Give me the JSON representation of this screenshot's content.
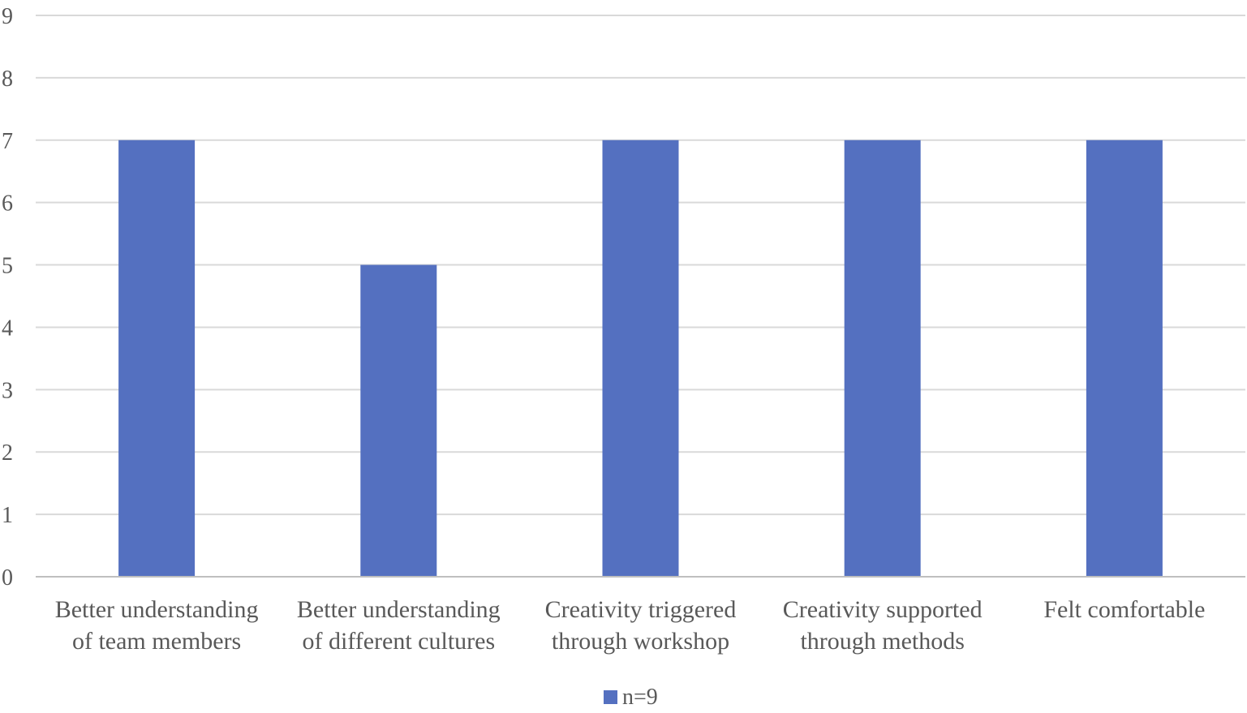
{
  "chart_data": {
    "type": "bar",
    "categories": [
      [
        "Better understanding",
        "of team members"
      ],
      [
        "Better understanding",
        "of different cultures"
      ],
      [
        "Creativity triggered",
        "through workshop"
      ],
      [
        "Creativity supported",
        "through methods"
      ],
      [
        "Felt comfortable"
      ]
    ],
    "series": [
      {
        "name": "n=9",
        "values": [
          7,
          5,
          7,
          7,
          7
        ],
        "color": "#5470c0"
      }
    ],
    "title": "",
    "xlabel": "",
    "ylabel": "",
    "ylim": [
      0,
      9
    ],
    "yticks": [
      "0",
      "1",
      "2",
      "3",
      "4",
      "5",
      "6",
      "7",
      "8",
      "9"
    ],
    "grid": true,
    "legend_position": "bottom-center"
  }
}
